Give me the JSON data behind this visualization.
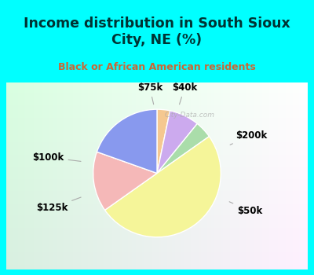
{
  "title": "Income distribution in South Sioux\nCity, NE (%)",
  "subtitle": "Black or African American residents",
  "labels": [
    "$75k",
    "$40k",
    "$200k",
    "$50k",
    "$125k",
    "$100k"
  ],
  "sizes": [
    3,
    7,
    4,
    46,
    14,
    18
  ],
  "colors": [
    "#f5c890",
    "#ccaaee",
    "#aaddaa",
    "#f5f599",
    "#f5b8b8",
    "#8899ee"
  ],
  "bg_cyan": "#00ffff",
  "bg_chart_tl": "#c8eedd",
  "bg_chart_br": "#e8f8ff",
  "title_color": "#003333",
  "subtitle_color": "#cc6633",
  "watermark": "City-Data.com",
  "edge_color": "#ffffff",
  "label_fontsize": 8.5,
  "title_fontsize": 12.5,
  "subtitle_fontsize": 9
}
